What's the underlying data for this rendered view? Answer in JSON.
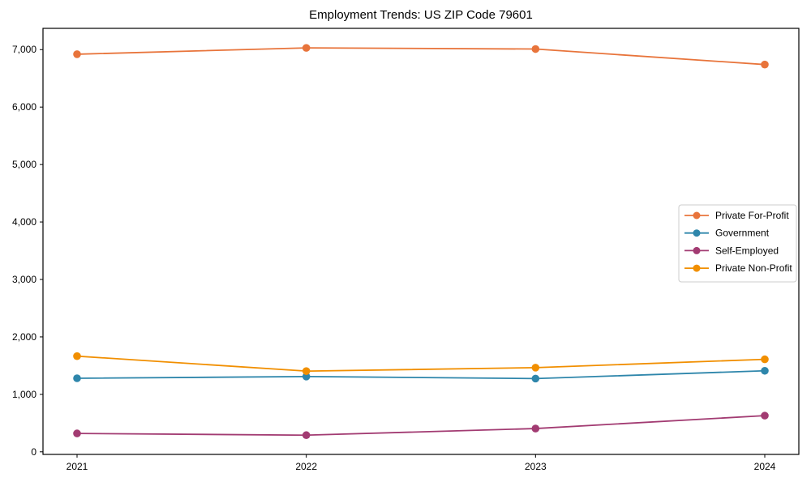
{
  "page": {
    "background": "#ffffff",
    "text_color": "#000000",
    "spine_color": "#000000",
    "legend_border_color": "#cccccc"
  },
  "chart_data": {
    "type": "line",
    "title": "Employment Trends: US ZIP Code 79601",
    "xlabel": "",
    "ylabel": "",
    "categories": [
      "2021",
      "2022",
      "2023",
      "2024"
    ],
    "series": [
      {
        "name": "Private For-Profit",
        "color": "#e8743b",
        "values": [
          6920,
          7030,
          7010,
          6740
        ]
      },
      {
        "name": "Government",
        "color": "#2e86ab",
        "values": [
          1280,
          1310,
          1275,
          1410
        ]
      },
      {
        "name": "Self-Employed",
        "color": "#a23b72",
        "values": [
          320,
          290,
          405,
          630
        ]
      },
      {
        "name": "Private Non-Profit",
        "color": "#f18f01",
        "values": [
          1665,
          1405,
          1465,
          1610
        ]
      }
    ],
    "ylim": [
      -45,
      7370
    ],
    "yticks": [
      0,
      1000,
      2000,
      3000,
      4000,
      5000,
      6000,
      7000
    ],
    "ytick_labels": [
      "0",
      "1,000",
      "2,000",
      "3,000",
      "4,000",
      "5,000",
      "6,000",
      "7,000"
    ],
    "grid": false,
    "marker": "circle",
    "legend_position": "center right"
  }
}
